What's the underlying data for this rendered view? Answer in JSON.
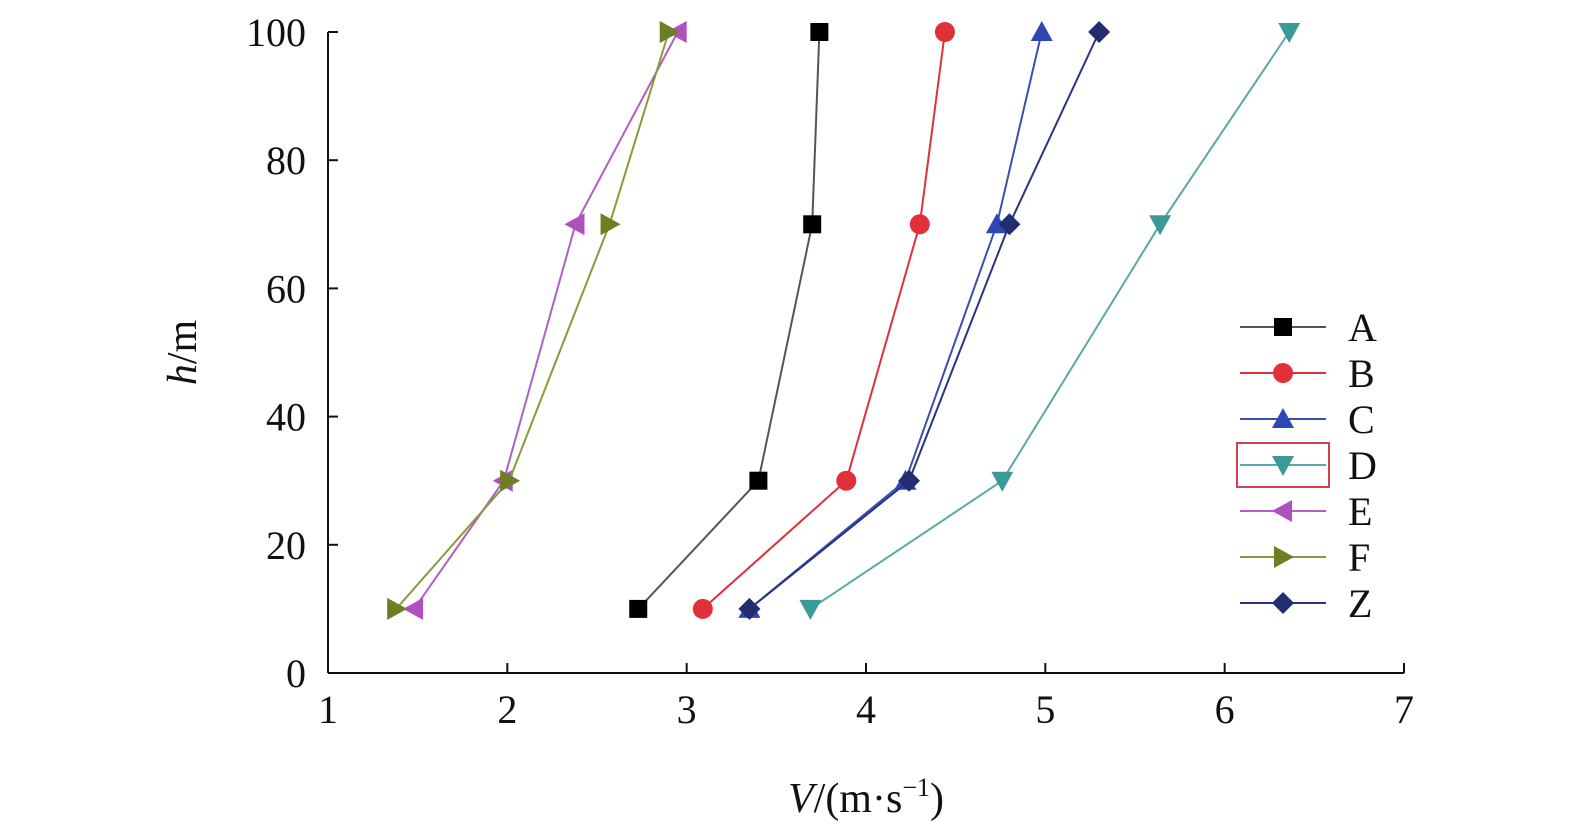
{
  "chart_data": {
    "type": "line",
    "xlabel_italic": "V",
    "xlabel_rest": "/(m·s",
    "xlabel_sup": "−1",
    "xlabel_close": ")",
    "ylabel_italic": "h",
    "ylabel_rest": "/m",
    "xlim": [
      1,
      7
    ],
    "ylim": [
      0,
      100
    ],
    "xticks": [
      1,
      2,
      3,
      4,
      5,
      6,
      7
    ],
    "yticks": [
      0,
      20,
      40,
      60,
      80,
      100
    ],
    "grid": false,
    "legend_position": "right",
    "y": [
      10,
      30,
      70,
      100
    ],
    "series": [
      {
        "name": "A",
        "x": [
          2.73,
          3.4,
          3.7,
          3.74
        ],
        "color": "#555555",
        "marker": "square",
        "marker_color": "#000000"
      },
      {
        "name": "B",
        "x": [
          3.09,
          3.89,
          4.3,
          4.44
        ],
        "color": "#e0303a",
        "marker": "circle",
        "marker_color": "#e0303a"
      },
      {
        "name": "C",
        "x": [
          3.35,
          4.22,
          4.73,
          4.98
        ],
        "color": "#3a4fb0",
        "marker": "triangle-up",
        "marker_color": "#2d48b5"
      },
      {
        "name": "D",
        "x": [
          3.69,
          4.76,
          5.64,
          6.36
        ],
        "color": "#5aa8a8",
        "marker": "triangle-down",
        "marker_color": "#3a9a98"
      },
      {
        "name": "E",
        "x": [
          1.48,
          1.98,
          2.38,
          2.95
        ],
        "color": "#b060c0",
        "marker": "triangle-left",
        "marker_color": "#b050c0"
      },
      {
        "name": "F",
        "x": [
          1.38,
          2.01,
          2.57,
          2.9
        ],
        "color": "#8a9a3a",
        "marker": "triangle-right",
        "marker_color": "#6e7e22"
      },
      {
        "name": "Z",
        "x": [
          3.35,
          4.24,
          4.8,
          5.3
        ],
        "color": "#2a3480",
        "marker": "diamond",
        "marker_color": "#232e70"
      }
    ],
    "highlighted_legend_entry": "D",
    "highlight_color": "#d04050"
  }
}
